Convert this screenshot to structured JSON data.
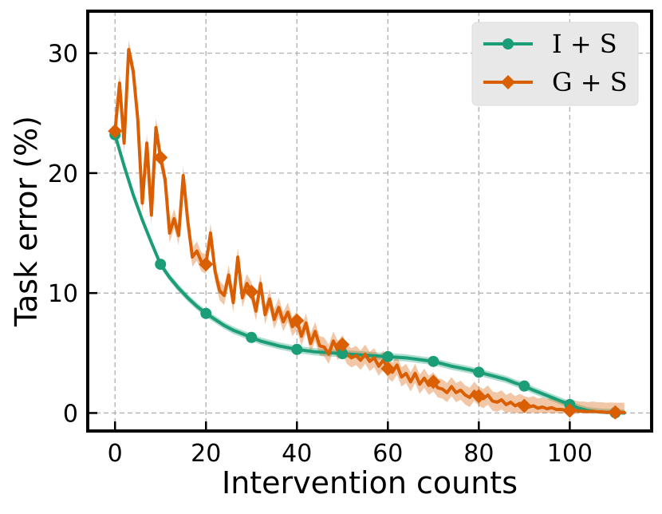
{
  "chart_data": {
    "type": "line",
    "title": "",
    "xlabel": "Intervention counts",
    "ylabel": "Task error (%)",
    "xlim": [
      -6,
      118
    ],
    "ylim": [
      -1.5,
      33.5
    ],
    "xticks": [
      0,
      20,
      40,
      60,
      80,
      100
    ],
    "yticks": [
      0,
      10,
      20,
      30
    ],
    "x_tick_labels": [
      "0",
      "20",
      "40",
      "60",
      "80",
      "100"
    ],
    "y_tick_labels": [
      "0",
      "10",
      "20",
      "30"
    ],
    "grid": true,
    "legend_position": "top-right",
    "series": [
      {
        "name": "I + S",
        "color": "#1b9e77",
        "marker": "circle",
        "x": [
          0,
          2,
          4,
          6,
          8,
          10,
          12,
          14,
          16,
          18,
          20,
          22,
          24,
          26,
          28,
          30,
          32,
          34,
          36,
          38,
          40,
          42,
          44,
          46,
          48,
          50,
          52,
          54,
          56,
          58,
          60,
          62,
          64,
          66,
          68,
          70,
          72,
          74,
          76,
          78,
          80,
          82,
          84,
          86,
          88,
          90,
          92,
          94,
          96,
          98,
          100,
          102,
          104,
          106,
          108,
          110,
          112
        ],
        "values": [
          23.2,
          20.6,
          18.2,
          16.1,
          14.2,
          12.4,
          11.3,
          10.4,
          9.6,
          8.9,
          8.3,
          7.8,
          7.3,
          6.9,
          6.6,
          6.3,
          6.0,
          5.8,
          5.6,
          5.45,
          5.3,
          5.2,
          5.1,
          5.05,
          5.0,
          4.95,
          4.9,
          4.85,
          4.8,
          4.75,
          4.7,
          4.65,
          4.6,
          4.5,
          4.4,
          4.3,
          4.1,
          3.9,
          3.75,
          3.6,
          3.4,
          3.2,
          3.0,
          2.8,
          2.5,
          2.25,
          1.9,
          1.6,
          1.3,
          1.0,
          0.7,
          0.4,
          0.2,
          0.1,
          0.05,
          0.02,
          0.0
        ],
        "band": 0.3,
        "marker_x": [
          0,
          10,
          20,
          30,
          40,
          50,
          60,
          70,
          80,
          90,
          100,
          110
        ],
        "marker_values": [
          23.2,
          12.4,
          8.3,
          6.3,
          5.3,
          4.95,
          4.7,
          4.3,
          3.4,
          2.25,
          0.7,
          0.02
        ]
      },
      {
        "name": "G + S",
        "color": "#d95f02",
        "marker": "diamond",
        "x": [
          0,
          1,
          2,
          3,
          4,
          5,
          6,
          7,
          8,
          9,
          10,
          11,
          12,
          13,
          14,
          15,
          16,
          17,
          18,
          19,
          20,
          21,
          22,
          23,
          24,
          25,
          26,
          27,
          28,
          29,
          30,
          31,
          32,
          33,
          34,
          35,
          36,
          37,
          38,
          39,
          40,
          41,
          42,
          43,
          44,
          45,
          46,
          47,
          48,
          49,
          50,
          51,
          52,
          53,
          54,
          55,
          56,
          57,
          58,
          59,
          60,
          61,
          62,
          63,
          64,
          65,
          66,
          67,
          68,
          69,
          70,
          71,
          72,
          73,
          74,
          75,
          76,
          77,
          78,
          79,
          80,
          81,
          82,
          83,
          84,
          85,
          86,
          87,
          88,
          89,
          90,
          91,
          92,
          93,
          94,
          95,
          96,
          97,
          98,
          99,
          100,
          101,
          102,
          103,
          104,
          105,
          106,
          107,
          108,
          109,
          110,
          111,
          112
        ],
        "values": [
          23.5,
          27.5,
          22.5,
          30.3,
          28.5,
          24.5,
          17.5,
          22.5,
          16.5,
          23.8,
          21.3,
          19.5,
          15.0,
          16.2,
          14.8,
          19.8,
          16.0,
          13.0,
          13.5,
          12.6,
          12.4,
          15.0,
          11.8,
          10.2,
          9.8,
          11.5,
          9.2,
          13.0,
          9.6,
          10.8,
          10.1,
          8.5,
          10.8,
          8.2,
          9.5,
          7.8,
          8.8,
          7.6,
          8.4,
          7.2,
          7.7,
          6.4,
          7.5,
          5.8,
          6.8,
          5.6,
          5.5,
          4.9,
          6.0,
          5.2,
          5.7,
          4.9,
          4.6,
          4.8,
          4.4,
          4.9,
          4.3,
          4.6,
          3.9,
          4.4,
          3.7,
          3.4,
          4.0,
          3.0,
          3.3,
          2.6,
          3.3,
          2.4,
          2.9,
          2.3,
          2.6,
          2.1,
          2.0,
          1.7,
          2.2,
          1.7,
          1.9,
          1.5,
          1.3,
          1.8,
          1.4,
          1.2,
          1.5,
          1.0,
          0.9,
          1.1,
          0.7,
          0.9,
          0.6,
          0.8,
          0.6,
          0.5,
          0.6,
          0.4,
          0.5,
          0.35,
          0.45,
          0.3,
          0.3,
          0.25,
          0.2,
          0.25,
          0.15,
          0.15,
          0.1,
          0.15,
          0.1,
          0.1,
          0.05,
          0.08,
          0.05,
          0.05,
          0.05
        ],
        "band": 0.8,
        "marker_x": [
          0,
          10,
          20,
          30,
          40,
          50,
          60,
          70,
          80,
          90,
          100,
          110
        ],
        "marker_values": [
          23.5,
          21.3,
          12.4,
          10.1,
          7.7,
          5.7,
          3.7,
          2.6,
          1.4,
          0.6,
          0.2,
          0.05
        ]
      }
    ]
  }
}
